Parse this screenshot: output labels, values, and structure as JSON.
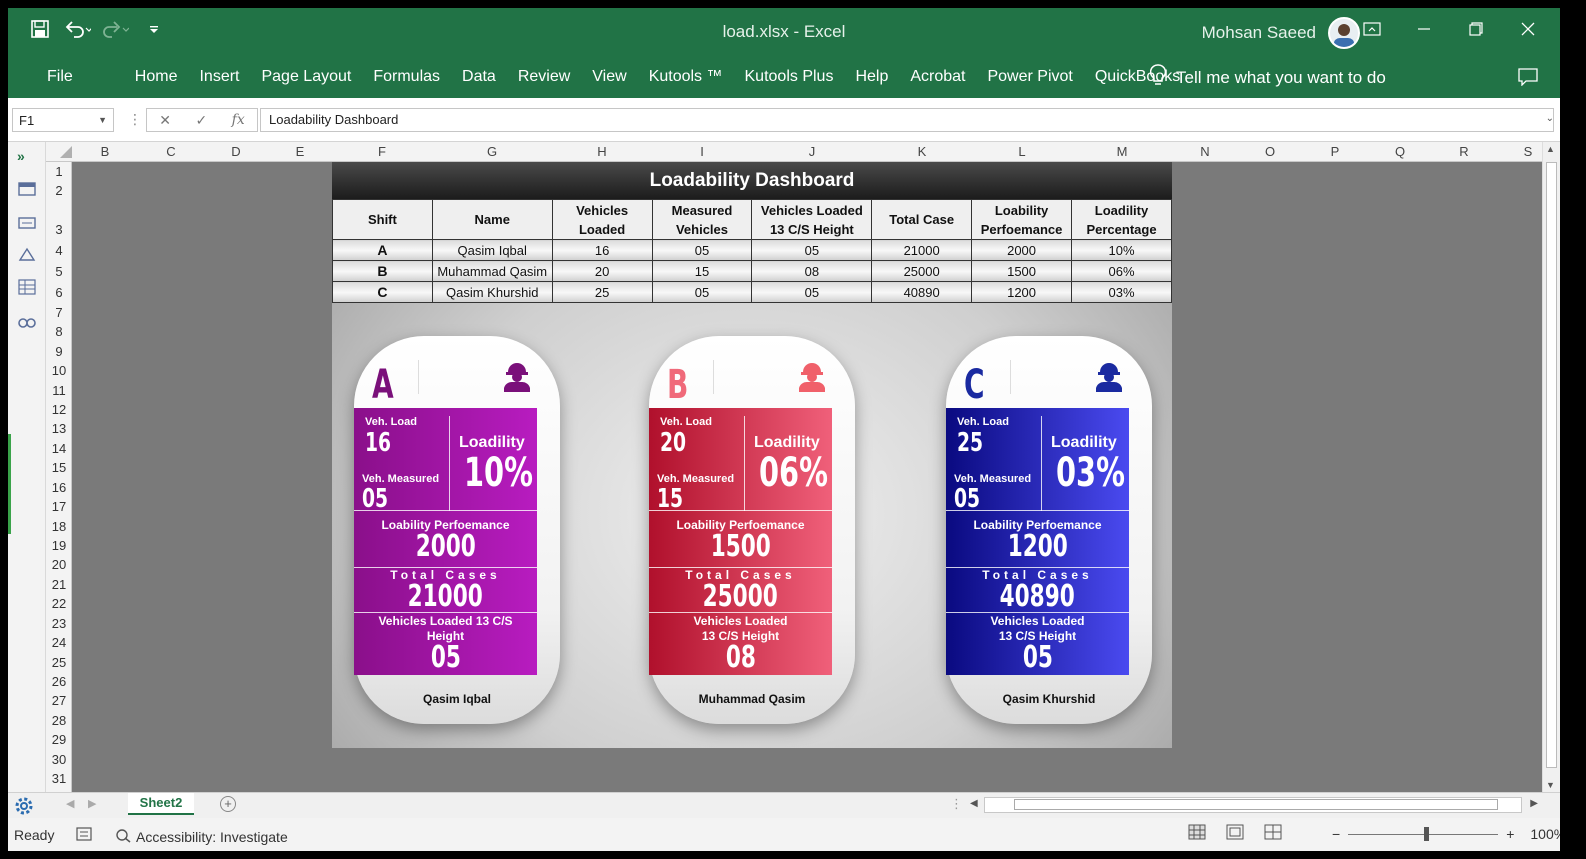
{
  "window": {
    "title": "load.xlsx  -  Excel",
    "user_name": "Mohsan Saeed"
  },
  "ribbon_tabs": [
    "File",
    "Home",
    "Insert",
    "Page Layout",
    "Formulas",
    "Data",
    "Review",
    "View",
    "Kutools ™",
    "Kutools Plus",
    "Help",
    "Acrobat",
    "Power Pivot",
    "QuickBooks"
  ],
  "tell_me": "Tell me what you want to do",
  "formula_bar": {
    "name_box": "F1",
    "formula": "Loadability Dashboard"
  },
  "columns": [
    "B",
    "C",
    "D",
    "E",
    "F",
    "G",
    "H",
    "I",
    "J",
    "K",
    "L",
    "M",
    "N",
    "O",
    "P",
    "Q",
    "R",
    "S"
  ],
  "rows": [
    "1",
    "2",
    "3",
    "4",
    "5",
    "6",
    "7",
    "8",
    "9",
    "10",
    "11",
    "12",
    "13",
    "14",
    "15",
    "16",
    "17",
    "18",
    "19",
    "20",
    "21",
    "22",
    "23",
    "24",
    "25",
    "26",
    "27",
    "28",
    "29",
    "30",
    "31"
  ],
  "dashboard": {
    "title": "Loadability Dashboard",
    "headers": [
      "Shift",
      "Name",
      "Vehicles Loaded",
      "Measured Vehicles",
      "Vehicles Loaded 13 C/S Height",
      "Total Case",
      "Loability Perfoemance",
      "Loadility Percentage"
    ],
    "rows": [
      [
        "A",
        "Qasim Iqbal",
        "16",
        "05",
        "05",
        "21000",
        "2000",
        "10%"
      ],
      [
        "B",
        "Muhammad Qasim",
        "20",
        "15",
        "08",
        "25000",
        "1500",
        "06%"
      ],
      [
        "C",
        "Qasim Khurshid",
        "25",
        "05",
        "05",
        "40890",
        "1200",
        "03%"
      ]
    ]
  },
  "card_labels": {
    "veh_load": "Veh. Load",
    "veh_measured": "Veh. Measured",
    "loadility": "Loadility",
    "performance": "Loability Perfoemance",
    "total_cases": "Total Cases",
    "vl13_a": "Vehicles Loaded  13 C/S Height",
    "vl13_b": "Vehicles Loaded 13 C/S Height"
  },
  "cards": [
    {
      "shift": "A",
      "veh_load": "16",
      "veh_measured": "05",
      "loadility": "10%",
      "performance": "2000",
      "total_cases": "21000",
      "vl13": "05",
      "name": "Qasim Iqbal",
      "color_from": "#8a0f8a",
      "color_to": "#b81cc0",
      "icon_color": "#7a107a"
    },
    {
      "shift": "B",
      "veh_load": "20",
      "veh_measured": "15",
      "loadility": "06%",
      "performance": "1500",
      "total_cases": "25000",
      "vl13": "08",
      "name": "Muhammad Qasim",
      "color_from": "#b0102c",
      "color_to": "#f0607a",
      "icon_color": "#f0606a"
    },
    {
      "shift": "C",
      "veh_load": "25",
      "veh_measured": "05",
      "loadility": "03%",
      "performance": "1200",
      "total_cases": "40890",
      "vl13": "05",
      "name": "Qasim Khurshid",
      "color_from": "#0a0a80",
      "color_to": "#4a4af0",
      "icon_color": "#1a2aa0"
    }
  ],
  "sheet_tab": "Sheet2",
  "status": {
    "ready": "Ready",
    "accessibility": "Accessibility: Investigate",
    "zoom": "100%"
  }
}
